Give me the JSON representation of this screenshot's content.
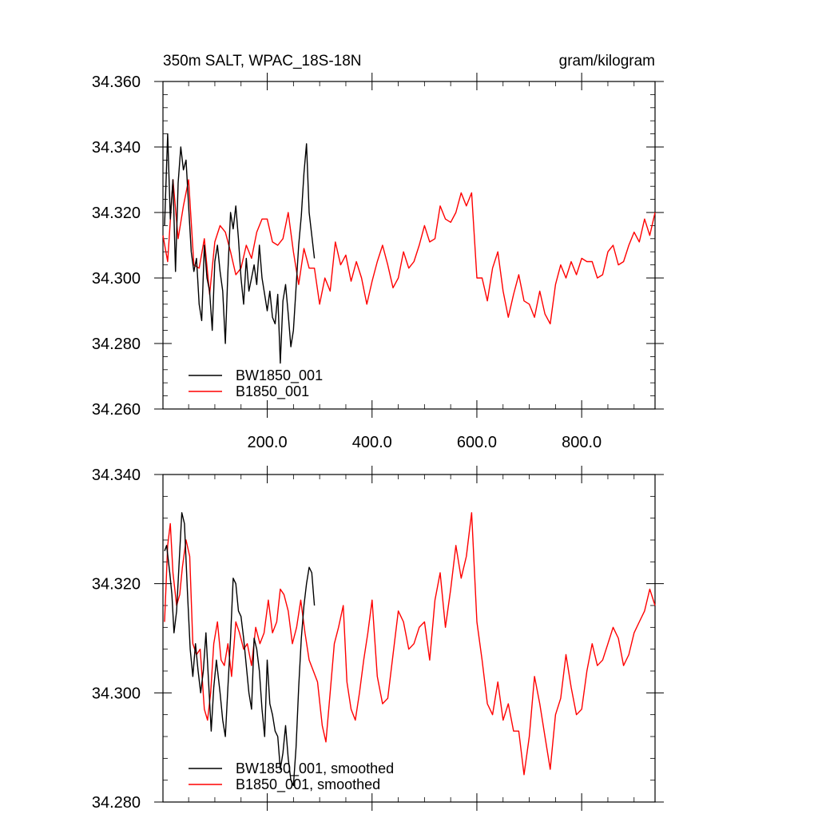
{
  "chart_data": [
    {
      "type": "line",
      "title_left": "350m SALT, WPAC_18S-18N",
      "title_right": "gram/kilogram",
      "xlim": [
        1,
        940
      ],
      "ylim": [
        34.26,
        34.36
      ],
      "xticks": [
        200,
        400,
        600,
        800
      ],
      "xtick_labels": [
        "200.0",
        "400.0",
        "600.0",
        "800.0"
      ],
      "yticks": [
        34.26,
        34.28,
        34.3,
        34.32,
        34.34,
        34.36
      ],
      "ytick_labels": [
        "34.260",
        "34.280",
        "34.300",
        "34.320",
        "34.340",
        "34.360"
      ],
      "legend_position": "bottom-left",
      "series": [
        {
          "name": "BW1850_001",
          "color": "#000000",
          "x": [
            4,
            10,
            15,
            20,
            25,
            30,
            35,
            40,
            45,
            50,
            55,
            60,
            65,
            70,
            75,
            80,
            85,
            90,
            95,
            100,
            105,
            110,
            115,
            120,
            125,
            130,
            135,
            140,
            145,
            150,
            155,
            160,
            165,
            170,
            175,
            180,
            185,
            190,
            195,
            200,
            205,
            210,
            215,
            220,
            225,
            230,
            235,
            240,
            245,
            250,
            255,
            260,
            265,
            270,
            275,
            280,
            285,
            290
          ],
          "values": [
            34.316,
            34.344,
            34.318,
            34.33,
            34.302,
            34.329,
            34.34,
            34.333,
            34.336,
            34.322,
            34.308,
            34.302,
            34.306,
            34.292,
            34.287,
            34.31,
            34.3,
            34.296,
            34.284,
            34.305,
            34.31,
            34.302,
            34.296,
            34.28,
            34.302,
            34.32,
            34.315,
            34.322,
            34.312,
            34.3,
            34.292,
            34.306,
            34.296,
            34.3,
            34.304,
            34.298,
            34.31,
            34.3,
            34.295,
            34.29,
            34.296,
            34.288,
            34.286,
            34.295,
            34.274,
            34.293,
            34.298,
            34.289,
            34.279,
            34.284,
            34.297,
            34.31,
            34.319,
            34.332,
            34.341,
            34.32,
            34.313,
            34.306
          ]
        },
        {
          "name": "B1850_001",
          "color": "#ff0000",
          "x": [
            1,
            10,
            20,
            30,
            40,
            50,
            60,
            70,
            80,
            90,
            100,
            110,
            120,
            130,
            140,
            150,
            160,
            170,
            180,
            190,
            200,
            210,
            220,
            230,
            240,
            250,
            260,
            270,
            280,
            290,
            300,
            310,
            320,
            330,
            340,
            350,
            360,
            370,
            380,
            390,
            400,
            410,
            420,
            430,
            440,
            450,
            460,
            470,
            480,
            490,
            500,
            510,
            520,
            530,
            540,
            550,
            560,
            570,
            580,
            590,
            600,
            610,
            620,
            630,
            640,
            650,
            660,
            670,
            680,
            690,
            700,
            710,
            720,
            730,
            740,
            750,
            760,
            770,
            780,
            790,
            800,
            810,
            820,
            830,
            840,
            850,
            860,
            870,
            880,
            890,
            900,
            910,
            920,
            930,
            940
          ],
          "values": [
            34.313,
            34.305,
            34.33,
            34.312,
            34.322,
            34.33,
            34.304,
            34.303,
            34.312,
            34.295,
            34.311,
            34.316,
            34.314,
            34.308,
            34.301,
            34.303,
            34.31,
            34.306,
            34.314,
            34.318,
            34.318,
            34.311,
            34.31,
            34.312,
            34.32,
            34.308,
            34.298,
            34.309,
            34.303,
            34.303,
            34.292,
            34.3,
            34.296,
            34.311,
            34.304,
            34.307,
            34.299,
            34.305,
            34.3,
            34.292,
            34.299,
            34.305,
            34.31,
            34.304,
            34.297,
            34.3,
            34.308,
            34.303,
            34.305,
            34.31,
            34.316,
            34.311,
            34.312,
            34.322,
            34.318,
            34.317,
            34.32,
            34.326,
            34.322,
            34.326,
            34.3,
            34.3,
            34.293,
            34.303,
            34.308,
            34.296,
            34.288,
            34.295,
            34.301,
            34.293,
            34.292,
            34.288,
            34.296,
            34.289,
            34.286,
            34.298,
            34.304,
            34.3,
            34.305,
            34.301,
            34.306,
            34.305,
            34.305,
            34.3,
            34.301,
            34.308,
            34.31,
            34.304,
            34.305,
            34.31,
            34.314,
            34.311,
            34.318,
            34.313,
            34.32
          ]
        }
      ]
    },
    {
      "type": "line",
      "xlim": [
        1,
        940
      ],
      "ylim": [
        34.28,
        34.34
      ],
      "xticks": [
        200,
        400,
        600,
        800
      ],
      "yticks": [
        34.28,
        34.3,
        34.32,
        34.34
      ],
      "ytick_labels": [
        "34.280",
        "34.300",
        "34.320",
        "34.340"
      ],
      "legend_position": "bottom-left",
      "series": [
        {
          "name": "BW1850_001, smoothed",
          "color": "#000000",
          "x": [
            4,
            8,
            14,
            18,
            22,
            27,
            32,
            37,
            42,
            48,
            53,
            58,
            63,
            68,
            73,
            78,
            83,
            88,
            93,
            98,
            103,
            110,
            115,
            120,
            125,
            130,
            135,
            140,
            145,
            150,
            155,
            160,
            165,
            170,
            175,
            180,
            185,
            190,
            195,
            200,
            205,
            210,
            215,
            220,
            225,
            230,
            235,
            240,
            245,
            250,
            255,
            260,
            265,
            270,
            275,
            280,
            285,
            290
          ],
          "values": [
            34.326,
            34.327,
            34.322,
            34.318,
            34.311,
            34.315,
            34.324,
            34.333,
            34.331,
            34.318,
            34.308,
            34.303,
            34.309,
            34.304,
            34.3,
            34.304,
            34.311,
            34.302,
            34.293,
            34.301,
            34.306,
            34.3,
            34.295,
            34.292,
            34.301,
            34.31,
            34.321,
            34.32,
            34.315,
            34.314,
            34.31,
            34.305,
            34.3,
            34.297,
            34.31,
            34.308,
            34.304,
            34.297,
            34.292,
            34.306,
            34.298,
            34.296,
            34.293,
            34.292,
            34.286,
            34.289,
            34.294,
            34.288,
            34.284,
            34.283,
            34.29,
            34.301,
            34.31,
            34.316,
            34.32,
            34.323,
            34.322,
            34.316
          ]
        },
        {
          "name": "B1850_001, smoothed",
          "color": "#ff0000",
          "x": [
            4,
            10,
            15,
            20,
            27,
            33,
            38,
            45,
            52,
            58,
            65,
            72,
            80,
            86,
            92,
            98,
            105,
            112,
            118,
            125,
            132,
            140,
            147,
            155,
            162,
            170,
            178,
            186,
            194,
            202,
            210,
            218,
            225,
            232,
            240,
            248,
            256,
            264,
            272,
            280,
            288,
            296,
            305,
            312,
            320,
            328,
            336,
            345,
            352,
            360,
            368,
            376,
            384,
            392,
            400,
            410,
            420,
            430,
            440,
            450,
            460,
            470,
            480,
            490,
            500,
            510,
            520,
            530,
            540,
            550,
            560,
            570,
            580,
            590,
            600,
            610,
            620,
            630,
            640,
            650,
            660,
            670,
            680,
            690,
            700,
            710,
            720,
            730,
            740,
            750,
            760,
            770,
            780,
            790,
            800,
            810,
            820,
            830,
            840,
            850,
            860,
            870,
            880,
            890,
            900,
            910,
            920,
            930,
            940
          ],
          "values": [
            34.313,
            34.327,
            34.331,
            34.322,
            34.316,
            34.318,
            34.323,
            34.328,
            34.325,
            34.309,
            34.307,
            34.308,
            34.297,
            34.295,
            34.3,
            34.309,
            34.313,
            34.306,
            34.305,
            34.309,
            34.303,
            34.313,
            34.311,
            34.308,
            34.309,
            34.305,
            34.312,
            34.309,
            34.311,
            34.317,
            34.311,
            34.313,
            34.319,
            34.318,
            34.315,
            34.309,
            34.312,
            34.317,
            34.311,
            34.306,
            34.304,
            34.302,
            34.294,
            34.291,
            34.3,
            34.309,
            34.312,
            34.316,
            34.302,
            34.297,
            34.295,
            34.3,
            34.306,
            34.311,
            34.317,
            34.303,
            34.298,
            34.299,
            34.307,
            34.315,
            34.313,
            34.308,
            34.309,
            34.312,
            34.313,
            34.306,
            34.317,
            34.322,
            34.312,
            34.319,
            34.327,
            34.321,
            34.325,
            34.333,
            34.313,
            34.306,
            34.298,
            34.296,
            34.302,
            34.295,
            34.298,
            34.293,
            34.293,
            34.285,
            34.292,
            34.303,
            34.298,
            34.292,
            34.286,
            34.296,
            34.299,
            34.307,
            34.301,
            34.296,
            34.297,
            34.304,
            34.309,
            34.305,
            34.306,
            34.309,
            34.312,
            34.31,
            34.305,
            34.307,
            34.311,
            34.313,
            34.315,
            34.319,
            34.316
          ]
        }
      ]
    }
  ]
}
